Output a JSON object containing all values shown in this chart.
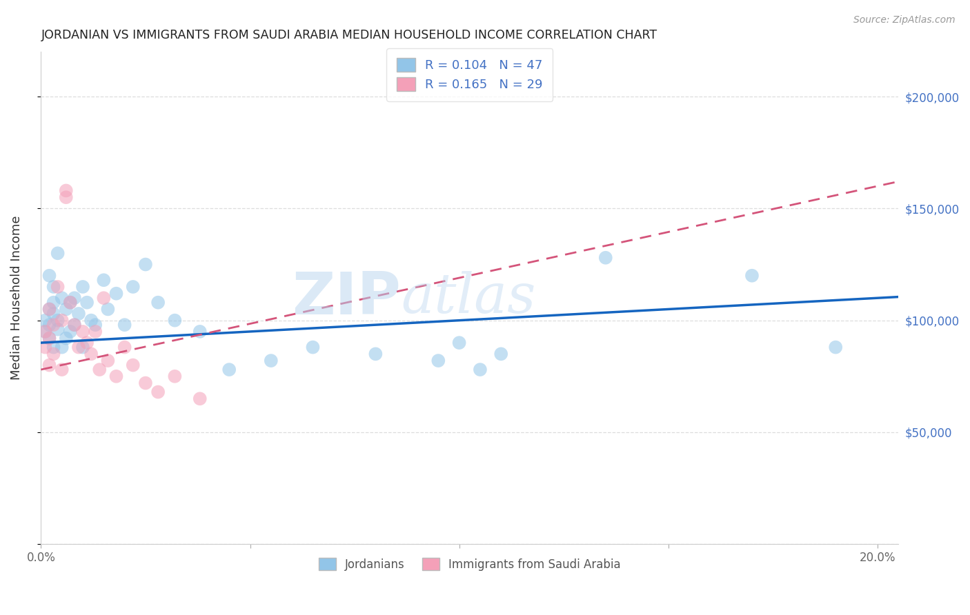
{
  "title": "JORDANIAN VS IMMIGRANTS FROM SAUDI ARABIA MEDIAN HOUSEHOLD INCOME CORRELATION CHART",
  "source": "Source: ZipAtlas.com",
  "ylabel": "Median Household Income",
  "xlim": [
    0.0,
    0.205
  ],
  "ylim": [
    0,
    220000
  ],
  "yticks": [
    0,
    50000,
    100000,
    150000,
    200000
  ],
  "ytick_labels_right": [
    "",
    "$50,000",
    "$100,000",
    "$150,000",
    "$200,000"
  ],
  "xticks": [
    0.0,
    0.05,
    0.1,
    0.15,
    0.2
  ],
  "xtick_labels": [
    "0.0%",
    "",
    "",
    "",
    "20.0%"
  ],
  "watermark_part1": "ZIP",
  "watermark_part2": "atlas",
  "R1": "0.104",
  "N1": "47",
  "R2": "0.165",
  "N2": "29",
  "blue_fill": "#92C5E8",
  "pink_fill": "#F4A0B8",
  "blue_line": "#1565C0",
  "pink_line": "#D4547A",
  "right_tick_color": "#4472C4",
  "watermark_blue": "#B8D4EE",
  "title_color": "#222222",
  "grid_color": "#DDDDDD",
  "scatter_size": 200,
  "blue_x": [
    0.001,
    0.001,
    0.002,
    0.002,
    0.002,
    0.002,
    0.003,
    0.003,
    0.003,
    0.003,
    0.004,
    0.004,
    0.004,
    0.005,
    0.005,
    0.006,
    0.006,
    0.007,
    0.007,
    0.008,
    0.008,
    0.009,
    0.01,
    0.01,
    0.011,
    0.012,
    0.013,
    0.015,
    0.016,
    0.018,
    0.02,
    0.022,
    0.025,
    0.028,
    0.032,
    0.038,
    0.045,
    0.055,
    0.065,
    0.08,
    0.095,
    0.1,
    0.105,
    0.11,
    0.135,
    0.17,
    0.19
  ],
  "blue_y": [
    100000,
    95000,
    105000,
    98000,
    120000,
    92000,
    108000,
    103000,
    88000,
    115000,
    100000,
    96000,
    130000,
    110000,
    88000,
    105000,
    92000,
    108000,
    95000,
    110000,
    98000,
    103000,
    115000,
    88000,
    108000,
    100000,
    98000,
    118000,
    105000,
    112000,
    98000,
    115000,
    125000,
    108000,
    100000,
    95000,
    78000,
    82000,
    88000,
    85000,
    82000,
    90000,
    78000,
    85000,
    128000,
    120000,
    88000
  ],
  "pink_x": [
    0.001,
    0.001,
    0.002,
    0.002,
    0.002,
    0.003,
    0.003,
    0.004,
    0.005,
    0.005,
    0.006,
    0.006,
    0.007,
    0.008,
    0.009,
    0.01,
    0.011,
    0.012,
    0.013,
    0.014,
    0.015,
    0.016,
    0.018,
    0.02,
    0.022,
    0.025,
    0.028,
    0.032,
    0.038
  ],
  "pink_y": [
    95000,
    88000,
    105000,
    92000,
    80000,
    98000,
    85000,
    115000,
    100000,
    78000,
    155000,
    158000,
    108000,
    98000,
    88000,
    95000,
    90000,
    85000,
    95000,
    78000,
    110000,
    82000,
    75000,
    88000,
    80000,
    72000,
    68000,
    75000,
    65000
  ]
}
